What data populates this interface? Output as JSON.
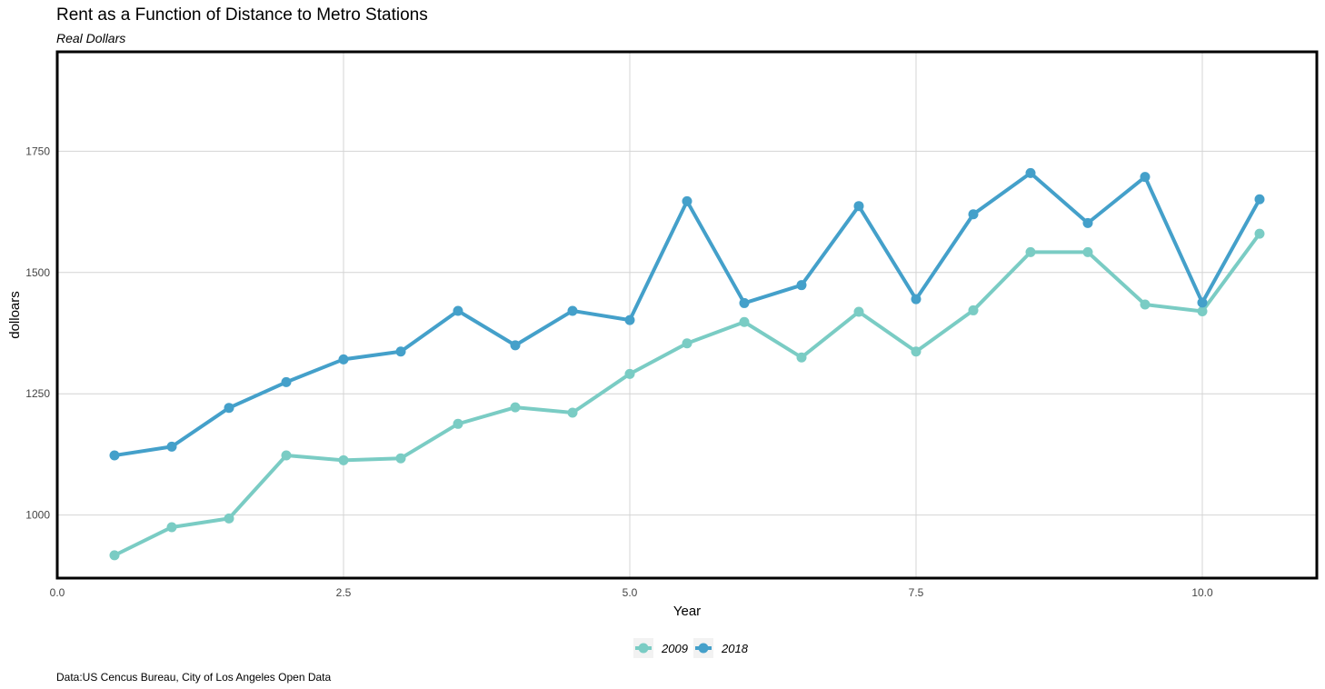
{
  "chart_data": {
    "type": "line",
    "title": "Rent as a Function of Distance to Metro Stations",
    "subtitle": "Real Dollars",
    "caption": "Data:US Cencus Bureau, City of Los Angeles Open Data",
    "xlabel": "Year",
    "ylabel": "dolloars",
    "xlim": [
      0,
      11
    ],
    "ylim": [
      870,
      1955
    ],
    "x_ticks": [
      0.0,
      2.5,
      5.0,
      7.5,
      10.0
    ],
    "x_tick_labels": [
      "0.0",
      "2.5",
      "5.0",
      "7.5",
      "10.0"
    ],
    "y_ticks": [
      1000,
      1250,
      1500,
      1750
    ],
    "y_tick_labels": [
      "1000",
      "1250",
      "1500",
      "1750"
    ],
    "grid": true,
    "legend_position": "bottom",
    "x": [
      0.5,
      1.0,
      1.5,
      2.0,
      2.5,
      3.0,
      3.5,
      4.0,
      4.5,
      5.0,
      5.5,
      6.0,
      6.5,
      7.0,
      7.5,
      8.0,
      8.5,
      9.0,
      9.5,
      10.0,
      10.5
    ],
    "series": [
      {
        "name": "2009",
        "color": "#7accc4",
        "values": [
          917,
          975,
          993,
          1123,
          1113,
          1117,
          1188,
          1222,
          1211,
          1291,
          1354,
          1398,
          1325,
          1419,
          1337,
          1422,
          1542,
          1542,
          1434,
          1420,
          1580
        ]
      },
      {
        "name": "2018",
        "color": "#44a0ca",
        "values": [
          1123,
          1141,
          1221,
          1274,
          1321,
          1337,
          1421,
          1350,
          1421,
          1402,
          1647,
          1437,
          1474,
          1637,
          1445,
          1620,
          1705,
          1602,
          1697,
          1438,
          1651
        ]
      }
    ]
  }
}
